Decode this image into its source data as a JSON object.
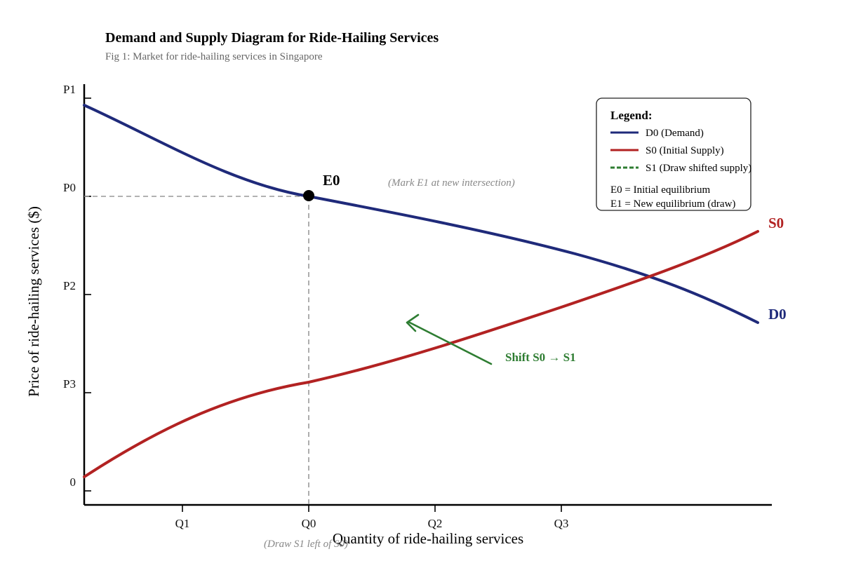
{
  "title": "Demand and Supply Diagram for Ride-Hailing Services",
  "subtitle": "Fig 1: Market for ride-hailing services in Singapore",
  "y_axis": {
    "title": "Price of ride-hailing services ($)",
    "ticks": [
      {
        "label": "P1"
      },
      {
        "label": "P0"
      },
      {
        "label": "P2"
      },
      {
        "label": "P3"
      },
      {
        "label": "0"
      }
    ]
  },
  "x_axis": {
    "title": "Quantity of ride-hailing services",
    "ticks": [
      {
        "label": "Q1"
      },
      {
        "label": "Q0"
      },
      {
        "label": "Q2"
      },
      {
        "label": "Q3"
      }
    ]
  },
  "curves": {
    "demand": {
      "label": "D0",
      "color": "#1f2a7a"
    },
    "supply": {
      "label": "S0",
      "color": "#b22222"
    }
  },
  "equilibrium": {
    "label": "E0",
    "color": "#000000"
  },
  "notes": {
    "mark_e1": "(Mark E1 at new intersection)",
    "draw_s1": "(Draw S1 left of S0)"
  },
  "shift": {
    "label": "Shift S0 → S1",
    "color": "#2e7d32"
  },
  "legend": {
    "title": "Legend:",
    "items": [
      {
        "label": "D0 (Demand)",
        "color": "#1f2a7a",
        "style": "solid"
      },
      {
        "label": "S0 (Initial Supply)",
        "color": "#b22222",
        "style": "solid"
      },
      {
        "label": "S1 (Draw shifted supply)",
        "color": "#2e7d32",
        "style": "dashed"
      }
    ],
    "notes": [
      "E0 = Initial equilibrium",
      "E1 = New equilibrium (draw)"
    ]
  }
}
